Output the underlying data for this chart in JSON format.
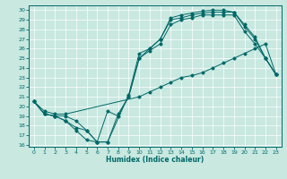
{
  "xlabel": "Humidex (Indice chaleur)",
  "bg_color": "#c8e8e0",
  "line_color": "#006868",
  "grid_color": "#ffffff",
  "xlim": [
    -0.5,
    23.5
  ],
  "ylim": [
    15.8,
    30.5
  ],
  "yticks": [
    16,
    17,
    18,
    19,
    20,
    21,
    22,
    23,
    24,
    25,
    26,
    27,
    28,
    29,
    30
  ],
  "xticks": [
    0,
    1,
    2,
    3,
    4,
    5,
    6,
    7,
    8,
    9,
    10,
    11,
    12,
    13,
    14,
    15,
    16,
    17,
    18,
    19,
    20,
    21,
    22,
    23
  ],
  "series": [
    {
      "x": [
        0,
        1,
        2,
        3,
        4,
        5,
        6,
        7,
        9,
        10,
        11,
        12,
        13,
        14,
        15,
        16,
        17,
        18,
        19,
        20,
        21,
        22,
        23
      ],
      "y": [
        20.5,
        19.2,
        19.0,
        18.5,
        17.5,
        16.5,
        16.3,
        16.3,
        21.2,
        25.5,
        26.0,
        27.0,
        29.2,
        29.5,
        29.7,
        29.9,
        30.0,
        30.0,
        29.8,
        28.5,
        27.2,
        25.0,
        23.3
      ]
    },
    {
      "x": [
        0,
        1,
        2,
        3,
        4,
        5,
        6,
        7,
        8,
        9,
        10,
        11,
        12,
        13,
        14,
        15,
        16,
        17,
        18,
        19,
        20,
        21,
        22,
        23
      ],
      "y": [
        20.5,
        19.2,
        19.0,
        19.0,
        18.5,
        17.5,
        16.3,
        19.5,
        19.0,
        21.0,
        25.0,
        26.0,
        27.0,
        29.0,
        29.2,
        29.5,
        29.7,
        29.8,
        29.8,
        29.8,
        28.3,
        27.0,
        25.0,
        23.3
      ]
    },
    {
      "x": [
        0,
        1,
        2,
        3,
        10,
        11,
        12,
        13,
        14,
        15,
        16,
        17,
        18,
        19,
        20,
        21,
        22,
        23
      ],
      "y": [
        20.5,
        19.5,
        19.2,
        19.2,
        21.0,
        21.5,
        22.0,
        22.5,
        23.0,
        23.2,
        23.5,
        24.0,
        24.5,
        25.0,
        25.5,
        26.0,
        26.5,
        23.3
      ]
    },
    {
      "x": [
        0,
        1,
        2,
        3,
        4,
        5,
        6,
        7,
        8,
        9,
        10,
        11,
        12,
        13,
        14,
        15,
        16,
        17,
        18,
        19,
        20,
        21,
        22,
        23
      ],
      "y": [
        20.5,
        19.2,
        19.0,
        18.5,
        17.8,
        17.5,
        16.3,
        16.3,
        19.2,
        21.0,
        25.0,
        25.8,
        26.5,
        28.5,
        29.0,
        29.2,
        29.5,
        29.5,
        29.5,
        29.5,
        27.8,
        26.5,
        25.0,
        23.3
      ]
    }
  ]
}
